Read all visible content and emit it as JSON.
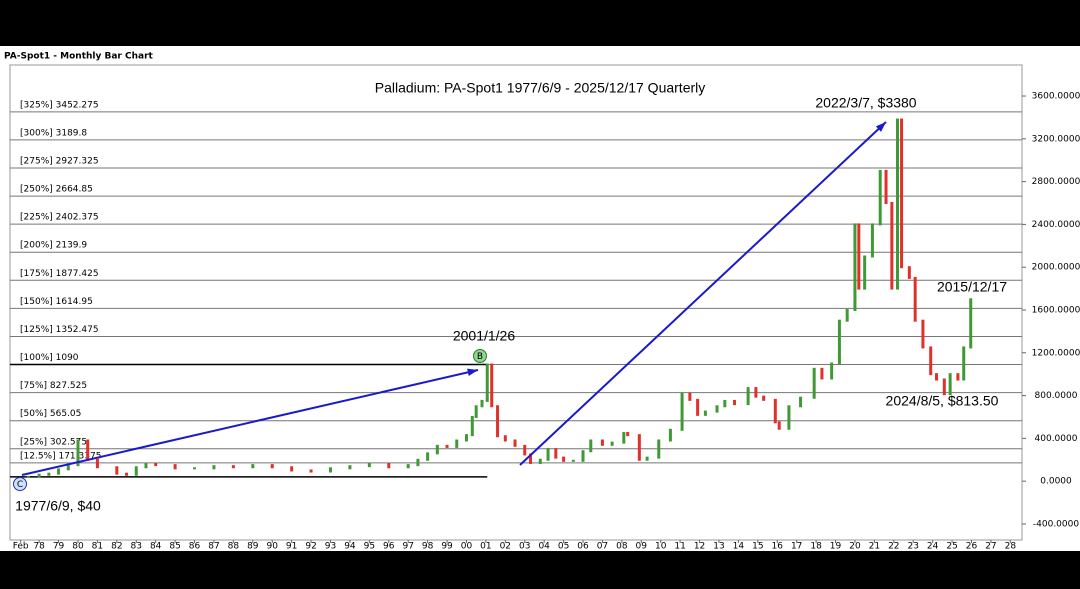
{
  "chart_data": {
    "type": "bar",
    "window_title": "PA-Spot1 - Monthly Bar Chart",
    "title": "Palladium: PA-Spot1 1977/6/9 - 2025/12/17 Quarterly",
    "up_color": "#3f9a35",
    "down_color": "#e0302a",
    "xlim": [
      1976.5,
      2028.6
    ],
    "ylim": [
      -550,
      3890
    ],
    "yticks": [
      {
        "value": 3600,
        "label": "3600.0000"
      },
      {
        "value": 3200,
        "label": "3200.0000"
      },
      {
        "value": 2800,
        "label": "2800.0000"
      },
      {
        "value": 2400,
        "label": "2400.0000"
      },
      {
        "value": 2000,
        "label": "2000.0000"
      },
      {
        "value": 1600,
        "label": "1600.0000"
      },
      {
        "value": 1200,
        "label": "1200.0000"
      },
      {
        "value": 800,
        "label": "800.0000"
      },
      {
        "value": 400,
        "label": "400.0000"
      },
      {
        "value": 0,
        "label": "0.0000"
      },
      {
        "value": -400,
        "label": "-400.0000"
      }
    ],
    "xticks": [
      {
        "value": 1977.05,
        "label": "Feb"
      },
      {
        "value": 1978,
        "label": "78"
      },
      {
        "value": 1979,
        "label": "79"
      },
      {
        "value": 1980,
        "label": "80"
      },
      {
        "value": 1981,
        "label": "81"
      },
      {
        "value": 1982,
        "label": "82"
      },
      {
        "value": 1983,
        "label": "83"
      },
      {
        "value": 1984,
        "label": "84"
      },
      {
        "value": 1985,
        "label": "85"
      },
      {
        "value": 1986,
        "label": "86"
      },
      {
        "value": 1987,
        "label": "87"
      },
      {
        "value": 1988,
        "label": "88"
      },
      {
        "value": 1989,
        "label": "89"
      },
      {
        "value": 1990,
        "label": "90"
      },
      {
        "value": 1991,
        "label": "91"
      },
      {
        "value": 1992,
        "label": "92"
      },
      {
        "value": 1993,
        "label": "93"
      },
      {
        "value": 1994,
        "label": "94"
      },
      {
        "value": 1995,
        "label": "95"
      },
      {
        "value": 1996,
        "label": "96"
      },
      {
        "value": 1997,
        "label": "97"
      },
      {
        "value": 1998,
        "label": "98"
      },
      {
        "value": 1999,
        "label": "99"
      },
      {
        "value": 2000,
        "label": "00"
      },
      {
        "value": 2001,
        "label": "01"
      },
      {
        "value": 2002,
        "label": "02"
      },
      {
        "value": 2003,
        "label": "03"
      },
      {
        "value": 2004,
        "label": "04"
      },
      {
        "value": 2005,
        "label": "05"
      },
      {
        "value": 2006,
        "label": "06"
      },
      {
        "value": 2007,
        "label": "07"
      },
      {
        "value": 2008,
        "label": "08"
      },
      {
        "value": 2009,
        "label": "09"
      },
      {
        "value": 2010,
        "label": "10"
      },
      {
        "value": 2011,
        "label": "11"
      },
      {
        "value": 2012,
        "label": "12"
      },
      {
        "value": 2013,
        "label": "13"
      },
      {
        "value": 2014,
        "label": "14"
      },
      {
        "value": 2015,
        "label": "15"
      },
      {
        "value": 2016,
        "label": "16"
      },
      {
        "value": 2017,
        "label": "17"
      },
      {
        "value": 2018,
        "label": "18"
      },
      {
        "value": 2019,
        "label": "19"
      },
      {
        "value": 2020,
        "label": "20"
      },
      {
        "value": 2021,
        "label": "21"
      },
      {
        "value": 2022,
        "label": "22"
      },
      {
        "value": 2023,
        "label": "23"
      },
      {
        "value": 2024,
        "label": "24"
      },
      {
        "value": 2025,
        "label": "25"
      },
      {
        "value": 2026,
        "label": "26"
      },
      {
        "value": 2027,
        "label": "27"
      },
      {
        "value": 2028,
        "label": "28"
      }
    ],
    "x": [
      1977.45,
      1978,
      1978.5,
      1979,
      1979.5,
      1980,
      1980.5,
      1981,
      1982,
      1982.5,
      1983,
      1983.5,
      1984,
      1985,
      1986,
      1987,
      1988,
      1989,
      1990,
      1991,
      1992,
      1993,
      1994,
      1995,
      1996,
      1997,
      1997.5,
      1998,
      1998.5,
      1999,
      1999.5,
      2000,
      2000.3,
      2000.5,
      2000.8,
      2001.07,
      2001.3,
      2001.6,
      2002,
      2002.5,
      2003,
      2003.3,
      2003.8,
      2004.2,
      2004.6,
      2005,
      2005.5,
      2006,
      2006.4,
      2007,
      2007.5,
      2008.1,
      2008.3,
      2008.9,
      2009.3,
      2009.9,
      2010.5,
      2011.1,
      2011.5,
      2011.9,
      2012.3,
      2012.9,
      2013.3,
      2013.8,
      2014.5,
      2014.9,
      2015.3,
      2015.9,
      2016.1,
      2016.6,
      2017.2,
      2017.9,
      2018.3,
      2018.8,
      2019.2,
      2019.6,
      2020,
      2020.2,
      2020.5,
      2020.9,
      2021.3,
      2021.6,
      2021.9,
      2022.19,
      2022.4,
      2022.8,
      2023.1,
      2023.5,
      2023.9,
      2024.2,
      2024.6,
      2024.9,
      2025.3,
      2025.6,
      2025.96
    ],
    "values": [
      40,
      60,
      70,
      110,
      150,
      380,
      200,
      130,
      70,
      60,
      130,
      160,
      150,
      120,
      120,
      140,
      130,
      150,
      130,
      100,
      90,
      120,
      140,
      160,
      130,
      150,
      200,
      260,
      330,
      320,
      380,
      430,
      600,
      700,
      750,
      1090,
      700,
      420,
      380,
      330,
      250,
      170,
      200,
      300,
      220,
      190,
      190,
      280,
      380,
      340,
      360,
      450,
      430,
      200,
      220,
      380,
      480,
      820,
      760,
      620,
      650,
      700,
      750,
      720,
      870,
      790,
      760,
      550,
      490,
      700,
      780,
      1050,
      960,
      1100,
      1500,
      1600,
      2400,
      1800,
      2100,
      2400,
      2900,
      2600,
      1800,
      3380,
      2000,
      1900,
      1500,
      1250,
      1000,
      950,
      813.5,
      1000,
      950,
      1250,
      1700
    ],
    "levels": [
      {
        "label": "[325%] 3452.275",
        "value": 3452.275
      },
      {
        "label": "[300%] 3189.8",
        "value": 3189.8
      },
      {
        "label": "[275%] 2927.325",
        "value": 2927.325
      },
      {
        "label": "[250%] 2664.85",
        "value": 2664.85
      },
      {
        "label": "[225%] 2402.375",
        "value": 2402.375
      },
      {
        "label": "[200%] 2139.9",
        "value": 2139.9
      },
      {
        "label": "[175%] 1877.425",
        "value": 1877.425
      },
      {
        "label": "[150%] 1614.95",
        "value": 1614.95
      },
      {
        "label": "[125%] 1352.475",
        "value": 1352.475
      },
      {
        "label": "[100%] 1090",
        "value": 1090
      },
      {
        "label": "[75%] 827.525",
        "value": 827.525
      },
      {
        "label": "[50%] 565.05",
        "value": 565.05
      },
      {
        "label": "[25%] 302.575",
        "value": 302.575
      },
      {
        "label": "[12.5%] 171.3375",
        "value": 171.3375
      }
    ],
    "base_level": 40,
    "annotations": [
      "2001/1/26",
      "2022/3/7, $3380",
      "2015/12/17",
      "2024/8/5, $813.50",
      "1977/6/9, $40"
    ],
    "markers": [
      "C",
      "B"
    ]
  }
}
